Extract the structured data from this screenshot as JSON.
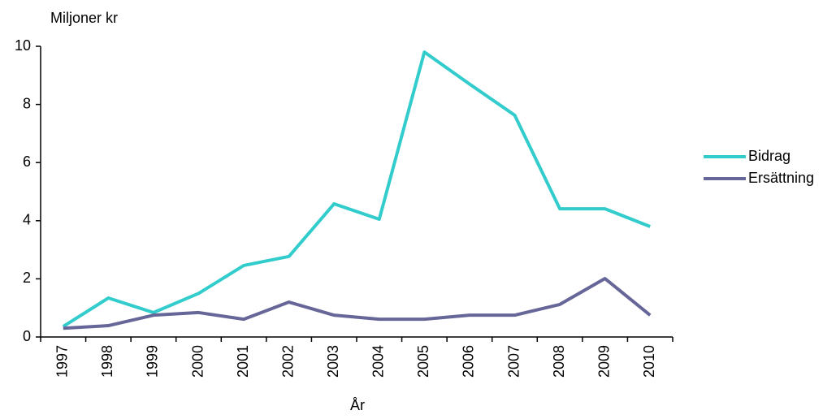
{
  "chart_data": {
    "type": "line",
    "y_label": "Miljoner kr",
    "x_label": "År",
    "categories": [
      "1997",
      "1998",
      "1999",
      "2000",
      "2001",
      "2002",
      "2003",
      "2004",
      "2005",
      "2006",
      "2007",
      "2008",
      "2009",
      "2010"
    ],
    "series": [
      {
        "name": "Bidrag",
        "color": "#33cccc",
        "values": [
          0.36,
          1.34,
          0.84,
          1.5,
          2.46,
          2.77,
          4.58,
          4.05,
          9.8,
          8.7,
          7.63,
          4.41,
          4.41,
          3.8
        ]
      },
      {
        "name": "Ersättning",
        "color": "#666699",
        "values": [
          0.3,
          0.39,
          0.75,
          0.84,
          0.61,
          1.2,
          0.75,
          0.61,
          0.61,
          0.75,
          0.75,
          1.12,
          2.01,
          0.75
        ]
      }
    ],
    "ylim": [
      0,
      10
    ],
    "yticks": [
      0,
      2,
      4,
      6,
      8,
      10
    ],
    "legend": "right"
  }
}
